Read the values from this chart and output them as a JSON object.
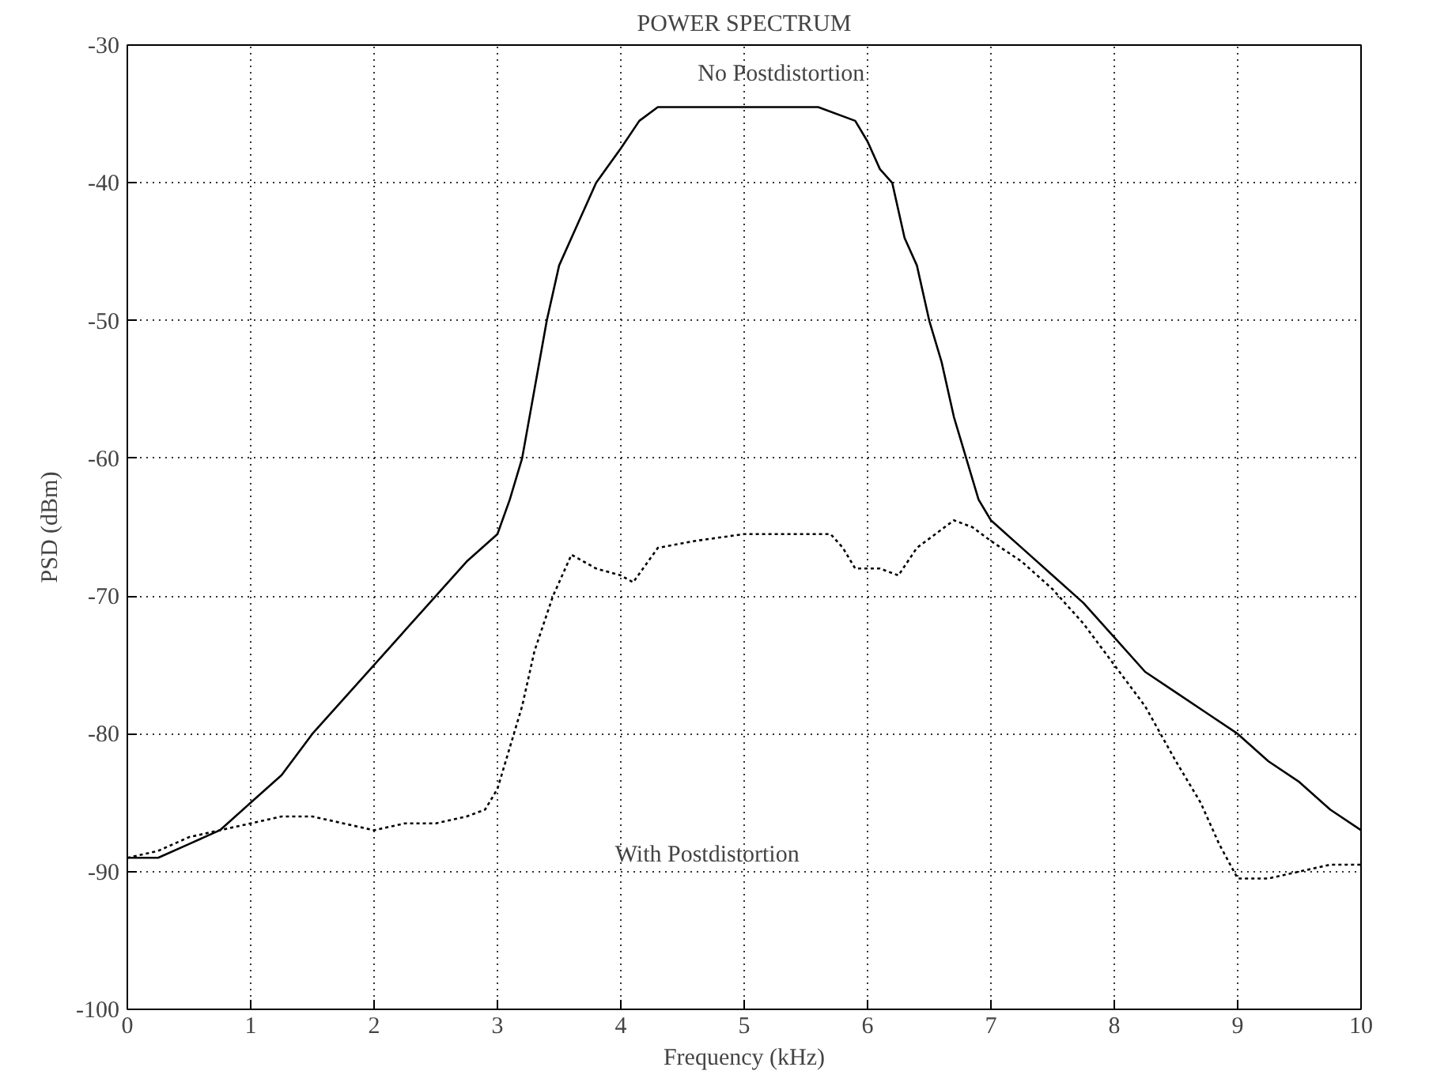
{
  "chart_data": {
    "type": "line",
    "title": "POWER SPECTRUM",
    "xlabel": "Frequency (kHz)",
    "ylabel": "PSD (dBm)",
    "xlim": [
      0,
      10
    ],
    "ylim": [
      -100,
      -30
    ],
    "xticks": [
      0,
      1,
      2,
      3,
      4,
      5,
      6,
      7,
      8,
      9,
      10
    ],
    "yticks": [
      -100,
      -90,
      -80,
      -70,
      -60,
      -50,
      -40,
      -30
    ],
    "grid": true,
    "series": [
      {
        "color": "#000000",
        "line_style": "solid",
        "x": [
          0,
          0.25,
          0.5,
          0.75,
          1.0,
          1.25,
          1.5,
          1.75,
          2.0,
          2.25,
          2.5,
          2.75,
          3.0,
          3.1,
          3.2,
          3.3,
          3.4,
          3.5,
          3.65,
          3.8,
          4.0,
          4.15,
          4.3,
          4.6,
          5.0,
          5.3,
          5.6,
          5.9,
          6.0,
          6.1,
          6.2,
          6.3,
          6.4,
          6.5,
          6.6,
          6.7,
          6.8,
          6.9,
          7.0,
          7.25,
          7.5,
          7.75,
          8.0,
          8.25,
          8.5,
          8.75,
          9.0,
          9.25,
          9.5,
          9.75,
          10.0
        ],
        "values": [
          -89,
          -89,
          -88,
          -87,
          -85,
          -83,
          -80,
          -77.5,
          -75,
          -72.5,
          -70,
          -67.5,
          -65.5,
          -63,
          -60,
          -55,
          -50,
          -46,
          -43,
          -40,
          -37.5,
          -35.5,
          -34.5,
          -34.5,
          -34.5,
          -34.5,
          -34.5,
          -35.5,
          -37,
          -39,
          -40,
          -44,
          -46,
          -50,
          -53,
          -57,
          -60,
          -63,
          -64.5,
          -66.5,
          -68.5,
          -70.5,
          -73,
          -75.5,
          -77,
          -78.5,
          -80,
          -82,
          -83.5,
          -85.5,
          -87
        ]
      },
      {
        "color": "#000000",
        "line_style": "dotted",
        "x": [
          0,
          0.25,
          0.5,
          0.75,
          1.0,
          1.25,
          1.5,
          1.75,
          2.0,
          2.25,
          2.5,
          2.75,
          2.9,
          3.0,
          3.1,
          3.2,
          3.3,
          3.45,
          3.6,
          3.8,
          4.0,
          4.1,
          4.3,
          4.6,
          5.0,
          5.3,
          5.7,
          5.8,
          5.9,
          6.1,
          6.25,
          6.4,
          6.55,
          6.7,
          6.85,
          7.0,
          7.25,
          7.5,
          7.75,
          8.0,
          8.25,
          8.5,
          8.7,
          8.85,
          9.0,
          9.25,
          9.5,
          9.75,
          10.0
        ],
        "values": [
          -89,
          -88.5,
          -87.5,
          -87,
          -86.5,
          -86,
          -86,
          -86.5,
          -87,
          -86.5,
          -86.5,
          -86,
          -85.5,
          -84,
          -81,
          -78,
          -74,
          -70,
          -67,
          -68,
          -68.5,
          -69,
          -66.5,
          -66,
          -65.5,
          -65.5,
          -65.5,
          -66.5,
          -68,
          -68,
          -68.5,
          -66.5,
          -65.5,
          -64.5,
          -65,
          -66,
          -67.5,
          -69.5,
          -72,
          -75,
          -78,
          -82,
          -85,
          -88,
          -90.5,
          -90.5,
          -90,
          -89.5,
          -89.5
        ]
      }
    ],
    "annotations": [
      "No Postdistortion",
      "With Postdistortion"
    ]
  }
}
